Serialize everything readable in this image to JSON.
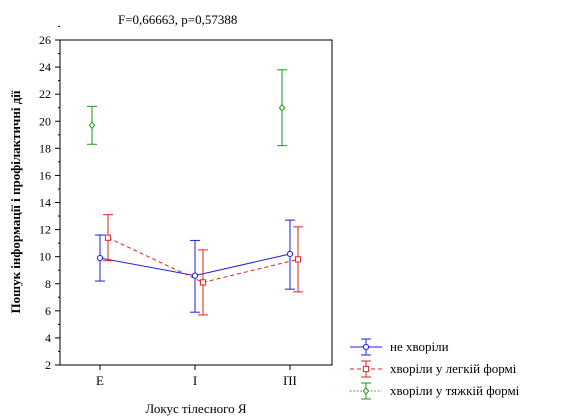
{
  "chart_data": {
    "type": "line",
    "title": "F=0,66663, p=0,57388",
    "xlabel": "Локус тілесного Я",
    "ylabel": "Пошук інформації і профілактичні дії",
    "categories": [
      "Е",
      "І",
      "ПІ"
    ],
    "ylim": [
      2,
      26
    ],
    "yticks": [
      2,
      4,
      6,
      8,
      10,
      12,
      14,
      16,
      18,
      20,
      22,
      24,
      26
    ],
    "grid": false,
    "legend_position": "bottom-right",
    "series": [
      {
        "name": "не хворіли",
        "color": "#1f1fe6",
        "line_style": "solid",
        "marker": "circle",
        "values": [
          9.9,
          8.6,
          10.2
        ],
        "lower": [
          8.2,
          5.9,
          7.6
        ],
        "upper": [
          11.6,
          11.2,
          12.7
        ]
      },
      {
        "name": "хворіли у легкій формі",
        "color": "#e62020",
        "line_style": "dashed",
        "marker": "square",
        "values": [
          11.4,
          8.1,
          9.8
        ],
        "lower": [
          9.7,
          5.7,
          7.4
        ],
        "upper": [
          13.1,
          10.5,
          12.2
        ]
      },
      {
        "name": "хворіли у тяжкій формі",
        "color": "#1a9a1a",
        "line_style": "dotted",
        "marker": "diamond",
        "values": [
          19.7,
          null,
          21.0
        ],
        "lower": [
          18.3,
          null,
          18.2
        ],
        "upper": [
          21.1,
          null,
          23.8
        ]
      }
    ]
  }
}
